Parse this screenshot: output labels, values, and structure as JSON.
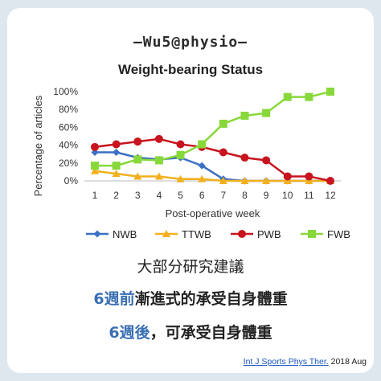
{
  "brand": "—Wu5@physio—",
  "texts": {
    "line1": "大部分研究建議",
    "line2_highlight": "6週前",
    "line2_rest": "漸進式的承受自身體重",
    "line3_highlight": "6週後",
    "line3_rest": "，可承受自身體重",
    "citation_link": "Int J Sports Phys Ther.",
    "citation_rest": " 2018 Aug"
  },
  "chart_data": {
    "type": "line",
    "title": "Weight-bearing Status",
    "xlabel": "Post-operative week",
    "ylabel": "Percentage of articles",
    "x": [
      1,
      2,
      3,
      4,
      5,
      6,
      7,
      8,
      9,
      10,
      11,
      12
    ],
    "ylim": [
      0,
      100
    ],
    "yticks": [
      "0%",
      "20%",
      "40%",
      "60%",
      "80%",
      "100%"
    ],
    "grid": false,
    "legend": "bottom",
    "series": [
      {
        "name": "NWB",
        "color": "#3a6fc4",
        "marker": "diamond",
        "values": [
          32,
          32,
          26,
          24,
          26,
          17,
          2,
          0,
          0,
          0,
          0,
          0
        ]
      },
      {
        "name": "TTWB",
        "color": "#f2b01e",
        "marker": "triangle",
        "values": [
          11,
          8,
          5,
          5,
          2,
          2,
          0,
          0,
          0,
          0,
          0,
          0
        ]
      },
      {
        "name": "PWB",
        "color": "#c8141e",
        "marker": "circle",
        "values": [
          38,
          41,
          44,
          47,
          41,
          38,
          32,
          26,
          23,
          5,
          5,
          0
        ]
      },
      {
        "name": "FWB",
        "color": "#88d83a",
        "marker": "square",
        "values": [
          17,
          17,
          24,
          23,
          29,
          41,
          64,
          73,
          76,
          94,
          94,
          100
        ]
      }
    ]
  }
}
